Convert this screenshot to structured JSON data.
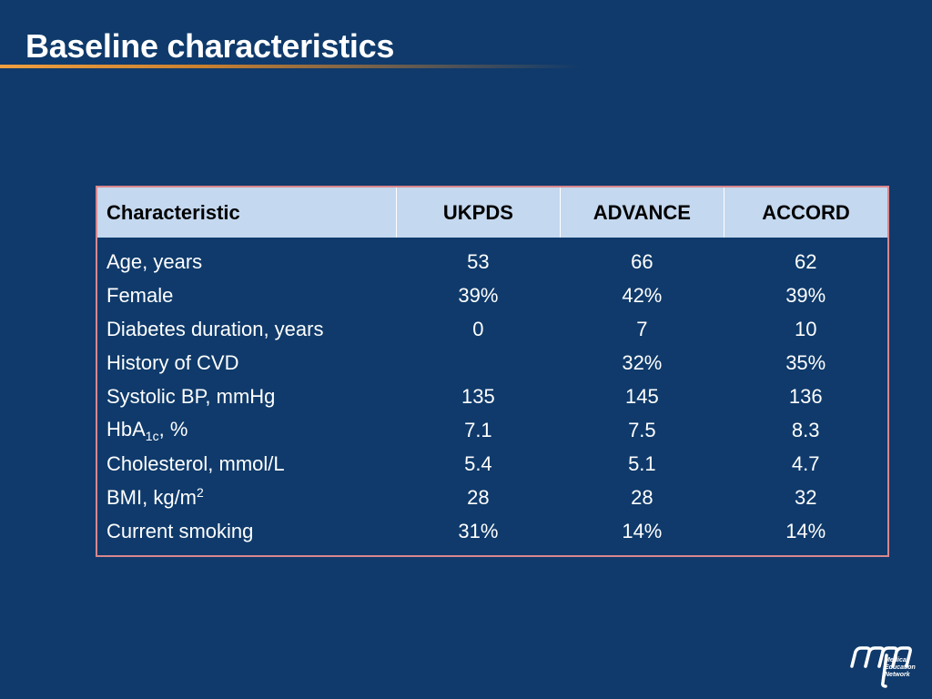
{
  "slide": {
    "title": "Baseline characteristics"
  },
  "table": {
    "headers": [
      "Characteristic",
      "UKPDS",
      "ADVANCE",
      "ACCORD"
    ],
    "rows": [
      {
        "label": "Age, years",
        "values": [
          "53",
          "66",
          "62"
        ]
      },
      {
        "label": "Female",
        "values": [
          "39%",
          "42%",
          "39%"
        ]
      },
      {
        "label": "Diabetes duration, years",
        "values": [
          "0",
          "7",
          "10"
        ]
      },
      {
        "label": "History of CVD",
        "values": [
          "",
          "32%",
          "35%"
        ]
      },
      {
        "label": "Systolic BP, mmHg",
        "values": [
          "135",
          "145",
          "136"
        ]
      },
      {
        "label_base": "HbA",
        "label_sub": "1c",
        "label_tail": ", %",
        "values": [
          "7.1",
          "7.5",
          "8.3"
        ]
      },
      {
        "label": "Cholesterol, mmol/L",
        "values": [
          "5.4",
          "5.1",
          "4.7"
        ]
      },
      {
        "label_base": "BMI, kg/m",
        "label_sup": "2",
        "values": [
          "28",
          "28",
          "32"
        ]
      },
      {
        "label": "Current smoking",
        "values": [
          "31%",
          "14%",
          "14%"
        ]
      }
    ]
  },
  "logo": {
    "lines": [
      "Medical",
      "Education",
      "Network"
    ]
  },
  "colors": {
    "background": "#0f3a6b",
    "header_fill": "#c4d8ef",
    "border": "#d9868e",
    "accent_rule": "#f0a040"
  }
}
